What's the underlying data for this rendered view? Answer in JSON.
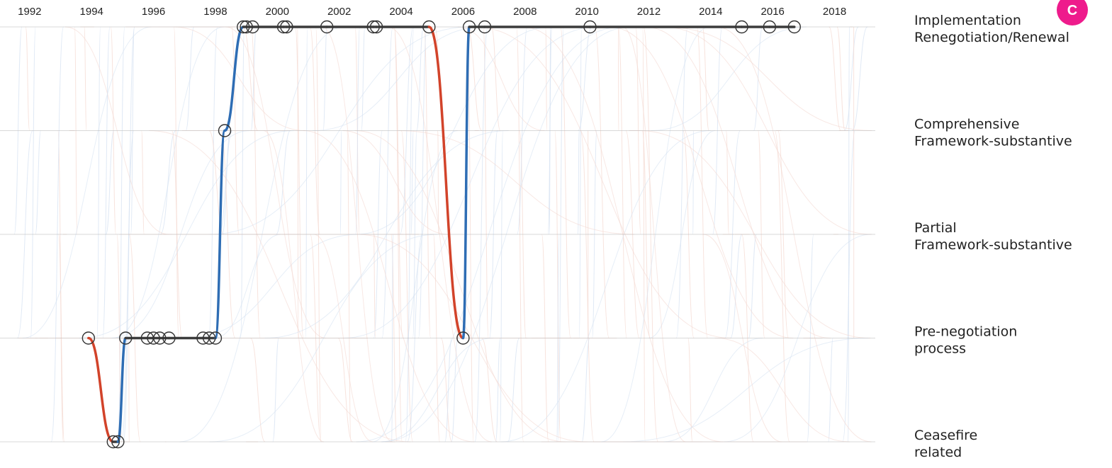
{
  "chart_data": {
    "type": "line",
    "title": "",
    "panel_label": "C",
    "badge_color": "#ee1b8c",
    "x_axis": {
      "tick_labels": [
        "1992",
        "1994",
        "1996",
        "1998",
        "2000",
        "2002",
        "2004",
        "2006",
        "2008",
        "2010",
        "2012",
        "2014",
        "2016",
        "2018"
      ],
      "tick_values": [
        1992,
        1994,
        1996,
        1998,
        2000,
        2002,
        2004,
        2006,
        2008,
        2010,
        2012,
        2014,
        2016,
        2018
      ],
      "range": [
        1991.5,
        2019.2
      ],
      "placement": "top"
    },
    "y_axis": {
      "categories": [
        "Implementation Renegotiation/Renewal",
        "Comprehensive Framework-substantive",
        "Partial Framework-substantive",
        "Pre-negotiation process",
        "Ceasefire related"
      ],
      "label_lines": [
        [
          "Implementation",
          "Renegotiation/Renewal"
        ],
        [
          "Comprehensive",
          "Framework-substantive"
        ],
        [
          "Partial",
          "Framework-substantive"
        ],
        [
          "Pre-negotiation",
          "process"
        ],
        [
          "Ceasefire",
          "related"
        ]
      ],
      "label_placement": "right"
    },
    "colors": {
      "same_stage": "#3c3c3c",
      "progress": "#2e6db4",
      "regress": "#d2432a",
      "background_progress": "#d6e2f2",
      "background_regress": "#f4d9d2",
      "grid": "#bbbbbb"
    },
    "highlighted_process": {
      "agreements": [
        {
          "year": 1993.9,
          "stage": 3
        },
        {
          "year": 1994.7,
          "stage": 4
        },
        {
          "year": 1994.85,
          "stage": 4
        },
        {
          "year": 1995.1,
          "stage": 3
        },
        {
          "year": 1995.8,
          "stage": 3
        },
        {
          "year": 1996.0,
          "stage": 3
        },
        {
          "year": 1996.2,
          "stage": 3
        },
        {
          "year": 1996.5,
          "stage": 3
        },
        {
          "year": 1997.6,
          "stage": 3
        },
        {
          "year": 1997.8,
          "stage": 3
        },
        {
          "year": 1998.0,
          "stage": 3
        },
        {
          "year": 1998.3,
          "stage": 1
        },
        {
          "year": 1998.9,
          "stage": 0
        },
        {
          "year": 1999.0,
          "stage": 0
        },
        {
          "year": 1999.2,
          "stage": 0
        },
        {
          "year": 2000.2,
          "stage": 0
        },
        {
          "year": 2000.3,
          "stage": 0
        },
        {
          "year": 2001.6,
          "stage": 0
        },
        {
          "year": 2003.1,
          "stage": 0
        },
        {
          "year": 2003.2,
          "stage": 0
        },
        {
          "year": 2004.9,
          "stage": 0
        },
        {
          "year": 2006.0,
          "stage": 3
        },
        {
          "year": 2006.2,
          "stage": 0
        },
        {
          "year": 2006.7,
          "stage": 0
        },
        {
          "year": 2010.1,
          "stage": 0
        },
        {
          "year": 2015.0,
          "stage": 0
        },
        {
          "year": 2015.9,
          "stage": 0
        },
        {
          "year": 2016.7,
          "stage": 0
        }
      ]
    }
  }
}
